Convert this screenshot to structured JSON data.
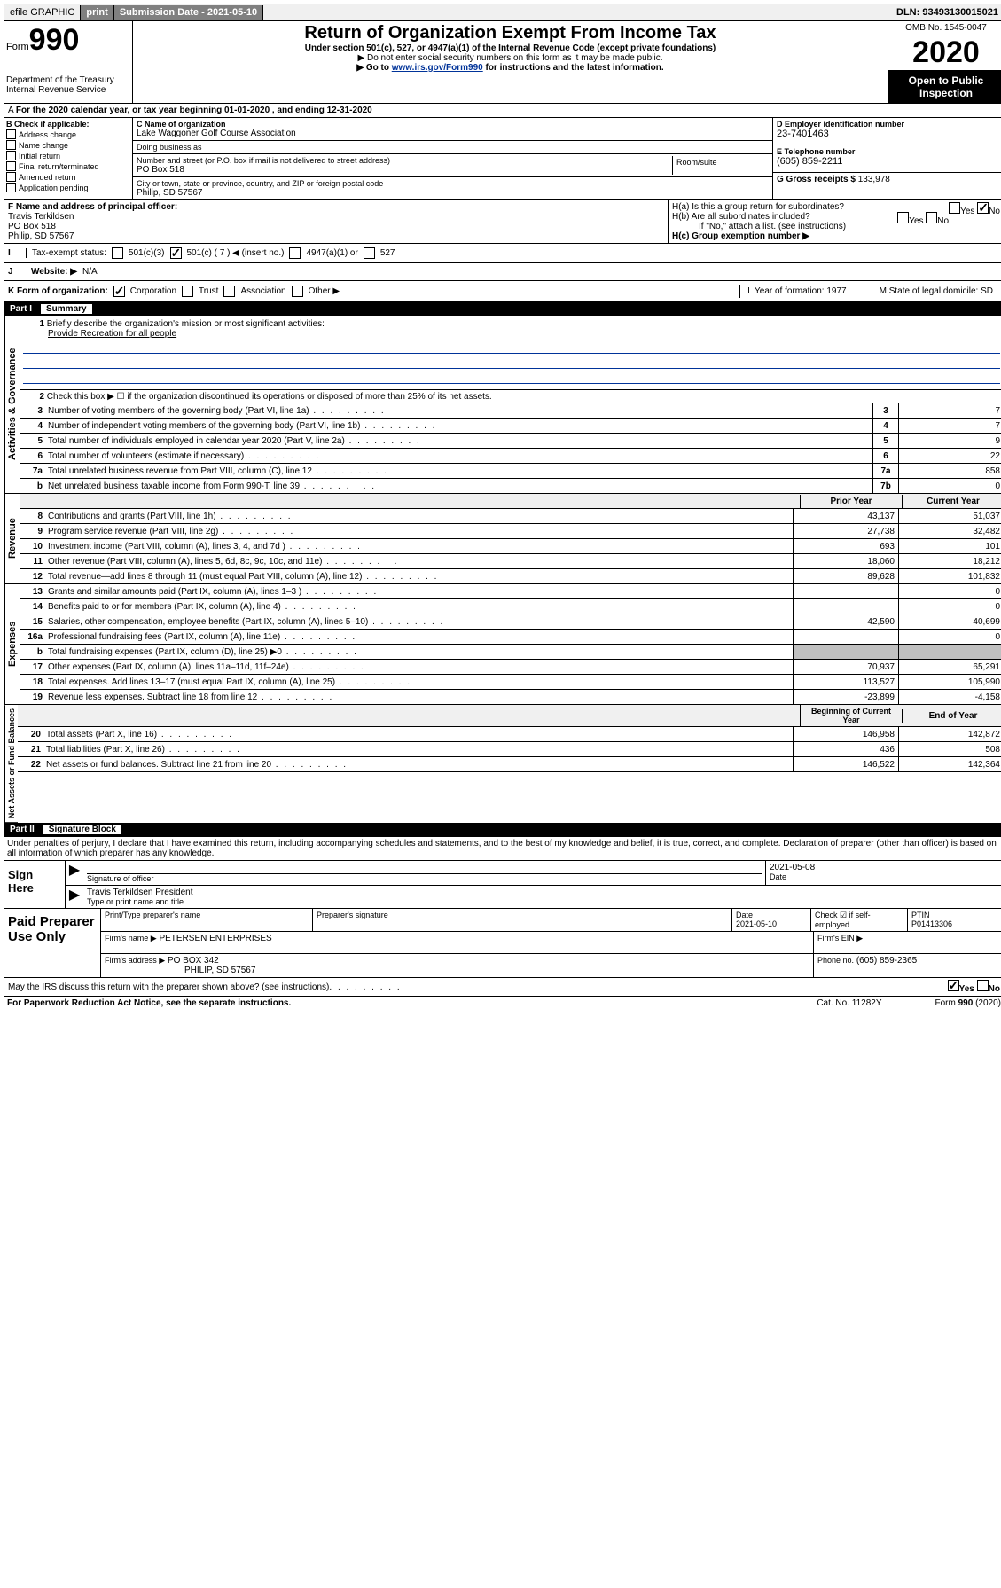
{
  "topbar": {
    "efile": "efile GRAPHIC",
    "print": "print",
    "submission": "Submission Date - 2021-05-10",
    "dln": "DLN: 93493130015021"
  },
  "header": {
    "form_label": "Form",
    "form_num": "990",
    "dept": "Department of the Treasury Internal Revenue Service",
    "title": "Return of Organization Exempt From Income Tax",
    "subtitle": "Under section 501(c), 527, or 4947(a)(1) of the Internal Revenue Code (except private foundations)",
    "note1": "▶ Do not enter social security numbers on this form as it may be made public.",
    "note2_pre": "▶ Go to ",
    "note2_link": "www.irs.gov/Form990",
    "note2_post": " for instructions and the latest information.",
    "omb": "OMB No. 1545-0047",
    "year": "2020",
    "open": "Open to Public Inspection"
  },
  "rowA": "For the 2020 calendar year, or tax year beginning 01-01-2020   , and ending 12-31-2020",
  "boxB": {
    "header": "B Check if applicable:",
    "items": [
      "Address change",
      "Name change",
      "Initial return",
      "Final return/terminated",
      "Amended return",
      "Application pending"
    ]
  },
  "boxC": {
    "name_label": "C Name of organization",
    "name": "Lake Waggoner Golf Course Association",
    "dba_label": "Doing business as",
    "addr_label": "Number and street (or P.O. box if mail is not delivered to street address)",
    "room_label": "Room/suite",
    "addr": "PO Box 518",
    "city_label": "City or town, state or province, country, and ZIP or foreign postal code",
    "city": "Philip, SD  57567"
  },
  "boxD": {
    "label": "D Employer identification number",
    "val": "23-7401463"
  },
  "boxE": {
    "label": "E Telephone number",
    "val": "(605) 859-2211"
  },
  "boxG": {
    "label": "G Gross receipts $",
    "val": "133,978"
  },
  "boxF": {
    "label": "F  Name and address of principal officer:",
    "name": "Travis Terkildsen",
    "addr1": "PO Box 518",
    "addr2": "Philip, SD  57567"
  },
  "boxH": {
    "a": "H(a)  Is this a group return for subordinates?",
    "b": "H(b)  Are all subordinates included?",
    "note": "If \"No,\" attach a list. (see instructions)",
    "c": "H(c)  Group exemption number ▶",
    "yes": "Yes",
    "no": "No"
  },
  "taxStatus": {
    "label": "Tax-exempt status:",
    "c3": "501(c)(3)",
    "c": "501(c) ( 7 ) ◀ (insert no.)",
    "a1": "4947(a)(1) or",
    "s527": "527"
  },
  "rowJ": {
    "label": "J",
    "text": "Website: ▶",
    "val": "N/A"
  },
  "rowK": {
    "label": "K Form of organization:",
    "corp": "Corporation",
    "trust": "Trust",
    "assoc": "Association",
    "other": "Other ▶",
    "L": "L Year of formation: 1977",
    "M": "M State of legal domicile: SD"
  },
  "partI": {
    "num": "Part I",
    "title": "Summary"
  },
  "summary": {
    "side1": "Activities & Governance",
    "side2": "Revenue",
    "side3": "Expenses",
    "side4": "Net Assets or Fund Balances",
    "q1": "Briefly describe the organization's mission or most significant activities:",
    "mission": "Provide Recreation for all people",
    "q2": "Check this box ▶ ☐  if the organization discontinued its operations or disposed of more than 25% of its net assets.",
    "rows_gov": [
      {
        "n": "3",
        "t": "Number of voting members of the governing body (Part VI, line 1a)",
        "box": "3",
        "v": "7"
      },
      {
        "n": "4",
        "t": "Number of independent voting members of the governing body (Part VI, line 1b)",
        "box": "4",
        "v": "7"
      },
      {
        "n": "5",
        "t": "Total number of individuals employed in calendar year 2020 (Part V, line 2a)",
        "box": "5",
        "v": "9"
      },
      {
        "n": "6",
        "t": "Total number of volunteers (estimate if necessary)",
        "box": "6",
        "v": "22"
      },
      {
        "n": "7a",
        "t": "Total unrelated business revenue from Part VIII, column (C), line 12",
        "box": "7a",
        "v": "858"
      },
      {
        "n": "b",
        "t": "Net unrelated business taxable income from Form 990-T, line 39",
        "box": "7b",
        "v": "0"
      }
    ],
    "hdr_prior": "Prior Year",
    "hdr_curr": "Current Year",
    "rows_rev": [
      {
        "n": "8",
        "t": "Contributions and grants (Part VIII, line 1h)",
        "p": "43,137",
        "c": "51,037"
      },
      {
        "n": "9",
        "t": "Program service revenue (Part VIII, line 2g)",
        "p": "27,738",
        "c": "32,482"
      },
      {
        "n": "10",
        "t": "Investment income (Part VIII, column (A), lines 3, 4, and 7d )",
        "p": "693",
        "c": "101"
      },
      {
        "n": "11",
        "t": "Other revenue (Part VIII, column (A), lines 5, 6d, 8c, 9c, 10c, and 11e)",
        "p": "18,060",
        "c": "18,212"
      },
      {
        "n": "12",
        "t": "Total revenue—add lines 8 through 11 (must equal Part VIII, column (A), line 12)",
        "p": "89,628",
        "c": "101,832"
      }
    ],
    "rows_exp": [
      {
        "n": "13",
        "t": "Grants and similar amounts paid (Part IX, column (A), lines 1–3 )",
        "p": "",
        "c": "0"
      },
      {
        "n": "14",
        "t": "Benefits paid to or for members (Part IX, column (A), line 4)",
        "p": "",
        "c": "0"
      },
      {
        "n": "15",
        "t": "Salaries, other compensation, employee benefits (Part IX, column (A), lines 5–10)",
        "p": "42,590",
        "c": "40,699"
      },
      {
        "n": "16a",
        "t": "Professional fundraising fees (Part IX, column (A), line 11e)",
        "p": "",
        "c": "0"
      },
      {
        "n": "b",
        "t": "Total fundraising expenses (Part IX, column (D), line 25) ▶0",
        "p": "gray",
        "c": "gray"
      },
      {
        "n": "17",
        "t": "Other expenses (Part IX, column (A), lines 11a–11d, 11f–24e)",
        "p": "70,937",
        "c": "65,291"
      },
      {
        "n": "18",
        "t": "Total expenses. Add lines 13–17 (must equal Part IX, column (A), line 25)",
        "p": "113,527",
        "c": "105,990"
      },
      {
        "n": "19",
        "t": "Revenue less expenses. Subtract line 18 from line 12",
        "p": "-23,899",
        "c": "-4,158"
      }
    ],
    "hdr_beg": "Beginning of Current Year",
    "hdr_end": "End of Year",
    "rows_net": [
      {
        "n": "20",
        "t": "Total assets (Part X, line 16)",
        "p": "146,958",
        "c": "142,872"
      },
      {
        "n": "21",
        "t": "Total liabilities (Part X, line 26)",
        "p": "436",
        "c": "508"
      },
      {
        "n": "22",
        "t": "Net assets or fund balances. Subtract line 21 from line 20",
        "p": "146,522",
        "c": "142,364"
      }
    ]
  },
  "partII": {
    "num": "Part II",
    "title": "Signature Block"
  },
  "declare": "Under penalties of perjury, I declare that I have examined this return, including accompanying schedules and statements, and to the best of my knowledge and belief, it is true, correct, and complete. Declaration of preparer (other than officer) is based on all information of which preparer has any knowledge.",
  "sign": {
    "label": "Sign Here",
    "sig_label": "Signature of officer",
    "date": "2021-05-08",
    "date_label": "Date",
    "name": "Travis Terkildsen  President",
    "name_label": "Type or print name and title"
  },
  "paid": {
    "label": "Paid Preparer Use Only",
    "h1": "Print/Type preparer's name",
    "h2": "Preparer's signature",
    "h3": "Date",
    "h3v": "2021-05-10",
    "h4": "Check ☑ if self-employed",
    "h5": "PTIN",
    "h5v": "P01413306",
    "firm_label": "Firm's name    ▶",
    "firm": "PETERSEN ENTERPRISES",
    "ein_label": "Firm's EIN ▶",
    "addr_label": "Firm's address ▶",
    "addr1": "PO BOX 342",
    "addr2": "PHILIP, SD  57567",
    "phone_label": "Phone no.",
    "phone": "(605) 859-2365"
  },
  "footer": {
    "discuss": "May the IRS discuss this return with the preparer shown above? (see instructions)",
    "yes": "Yes",
    "no": "No",
    "paperwork": "For Paperwork Reduction Act Notice, see the separate instructions.",
    "cat": "Cat. No. 11282Y",
    "form": "Form 990 (2020)"
  }
}
